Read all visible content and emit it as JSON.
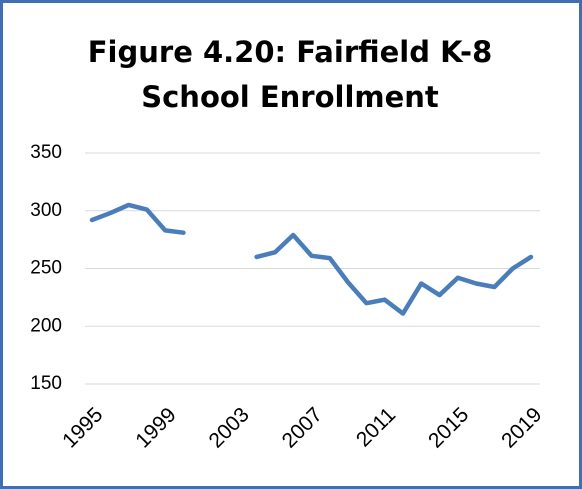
{
  "chart_data": {
    "type": "line",
    "title": "Figure 4.20: Fairfield K-8 School Enrollment",
    "x": [
      1995,
      1996,
      1997,
      1998,
      1999,
      2000,
      2001,
      2002,
      2003,
      2004,
      2005,
      2006,
      2007,
      2008,
      2009,
      2010,
      2011,
      2012,
      2013,
      2014,
      2015,
      2016,
      2017,
      2018,
      2019
    ],
    "series": [
      {
        "name": "Enrollment",
        "color": "#4a7ebb",
        "values": [
          292,
          298,
          305,
          301,
          283,
          281,
          null,
          null,
          null,
          260,
          264,
          279,
          261,
          259,
          238,
          220,
          223,
          211,
          237,
          227,
          242,
          237,
          234,
          250,
          260
        ]
      }
    ],
    "xlim": [
      1995,
      2019
    ],
    "xticks": [
      1995,
      1999,
      2003,
      2007,
      2011,
      2015,
      2019
    ],
    "ylim": [
      150,
      350
    ],
    "yticks": [
      150,
      200,
      250,
      300,
      350
    ],
    "grid": true
  }
}
